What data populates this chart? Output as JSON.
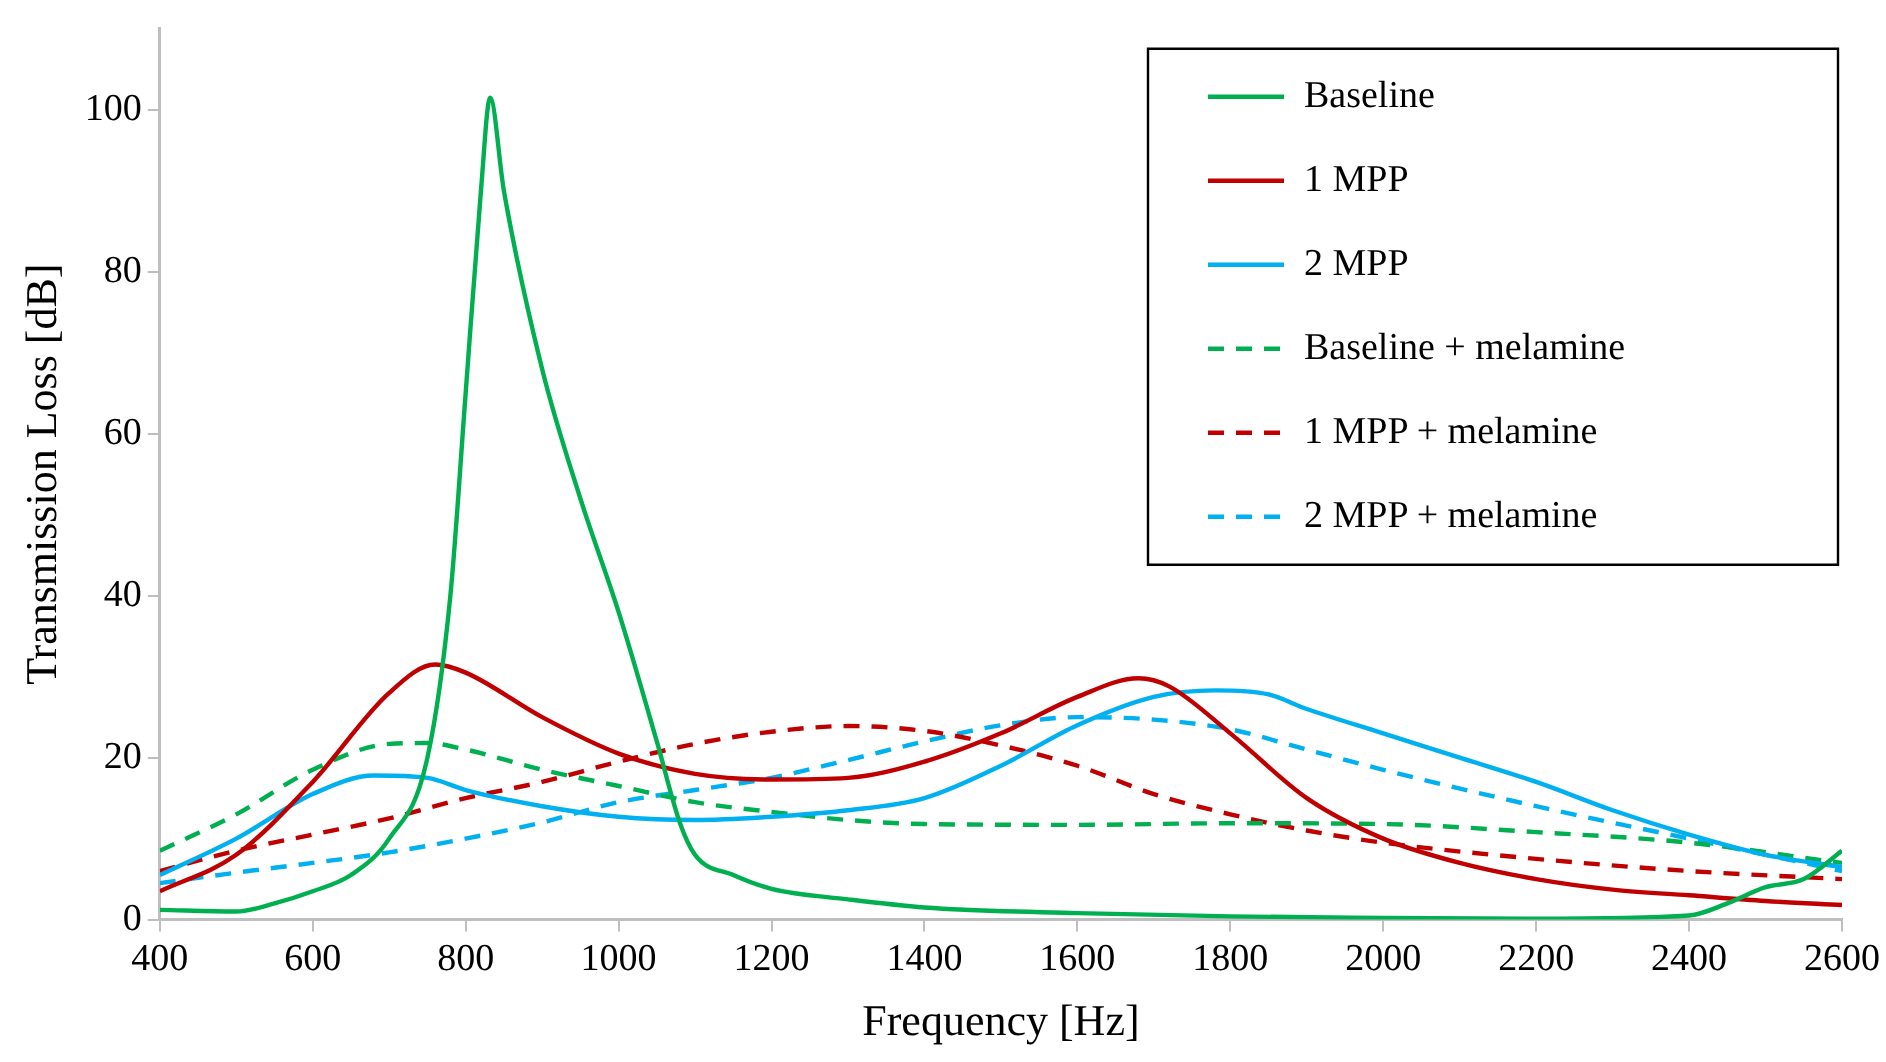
{
  "chart_data": {
    "type": "line",
    "xlabel": "Frequency [Hz]",
    "ylabel": "Transmission Loss [dB]",
    "xlim": [
      400,
      2600
    ],
    "xticks": [
      400,
      600,
      800,
      1000,
      1200,
      1400,
      1600,
      1800,
      2000,
      2200,
      2400,
      2600
    ],
    "ylim": [
      0,
      110
    ],
    "yticks": [
      0,
      20,
      40,
      60,
      80,
      100
    ],
    "grid": false,
    "legend": "top right",
    "marker": "none",
    "series": [
      {
        "name": "Baseline",
        "color": "#00b050",
        "line_style": "solid",
        "x": [
          400,
          500,
          550,
          600,
          650,
          700,
          750,
          780,
          800,
          820,
          832,
          850,
          900,
          950,
          1000,
          1050,
          1080,
          1100,
          1150,
          1200,
          1300,
          1400,
          1600,
          1800,
          2000,
          2200,
          2400,
          2450,
          2500,
          2550,
          2600
        ],
        "values": [
          1.2,
          1,
          2,
          3.5,
          5.5,
          10,
          20,
          40,
          65,
          90,
          101.5,
          90,
          68,
          52,
          38,
          22,
          12,
          8,
          5.5,
          3.8,
          2.5,
          1.5,
          0.8,
          0.4,
          0.2,
          0.1,
          0.5,
          2,
          4,
          5,
          8.5
        ]
      },
      {
        "name": "1 MPP",
        "color": "#c00000",
        "line_style": "solid",
        "x": [
          400,
          500,
          600,
          700,
          760,
          800,
          900,
          1000,
          1100,
          1200,
          1300,
          1400,
          1500,
          1600,
          1680,
          1720,
          1800,
          1900,
          2000,
          2100,
          2200,
          2300,
          2400,
          2500,
          2600
        ],
        "values": [
          3.5,
          8,
          17,
          28,
          31.5,
          30.5,
          25,
          20.5,
          18,
          17.3,
          17.5,
          19.5,
          23,
          27.5,
          29.8,
          28.8,
          23,
          15,
          10,
          7,
          5,
          3.7,
          3,
          2.3,
          1.8
        ]
      },
      {
        "name": "2 MPP",
        "color": "#00b0f0",
        "line_style": "solid",
        "x": [
          400,
          500,
          600,
          680,
          750,
          800,
          900,
          1000,
          1100,
          1200,
          1300,
          1400,
          1500,
          1600,
          1700,
          1780,
          1850,
          1900,
          2000,
          2100,
          2200,
          2300,
          2400,
          2500,
          2600
        ],
        "values": [
          5.5,
          10,
          15.5,
          17.8,
          17.5,
          16,
          14,
          12.7,
          12.3,
          12.7,
          13.5,
          15,
          19,
          24,
          27.5,
          28.3,
          27.8,
          26,
          23,
          20,
          17,
          13.5,
          10.5,
          8,
          6.5
        ]
      },
      {
        "name": "Baseline + melamine",
        "color": "#00b050",
        "line_style": "dashed",
        "x": [
          400,
          500,
          600,
          700,
          750,
          800,
          900,
          1000,
          1100,
          1200,
          1300,
          1400,
          1600,
          1800,
          2000,
          2200,
          2400,
          2600
        ],
        "values": [
          8.5,
          13,
          18.5,
          21.7,
          21.8,
          21,
          18.5,
          16.5,
          14.5,
          13.3,
          12.3,
          11.8,
          11.7,
          11.9,
          11.8,
          10.8,
          9.5,
          7
        ]
      },
      {
        "name": "1 MPP + melamine",
        "color": "#c00000",
        "line_style": "dashed",
        "x": [
          400,
          500,
          600,
          700,
          800,
          900,
          1000,
          1100,
          1200,
          1300,
          1400,
          1500,
          1600,
          1700,
          1800,
          1900,
          2000,
          2200,
          2400,
          2600
        ],
        "values": [
          6,
          8.5,
          10.5,
          12.5,
          15,
          17,
          19.5,
          21.7,
          23.2,
          23.9,
          23.3,
          21.5,
          19,
          15.5,
          13,
          11,
          9.5,
          7.5,
          6,
          5
        ]
      },
      {
        "name": "2 MPP + melamine",
        "color": "#00b0f0",
        "line_style": "dashed",
        "x": [
          400,
          500,
          600,
          700,
          800,
          900,
          1000,
          1100,
          1200,
          1300,
          1400,
          1500,
          1600,
          1700,
          1800,
          1900,
          2000,
          2200,
          2400,
          2600
        ],
        "values": [
          4.5,
          5.8,
          7,
          8.3,
          10,
          12,
          14.5,
          16,
          17.5,
          19.7,
          22,
          24,
          25,
          24.7,
          23.5,
          21,
          18.5,
          14,
          10,
          6
        ]
      }
    ]
  }
}
